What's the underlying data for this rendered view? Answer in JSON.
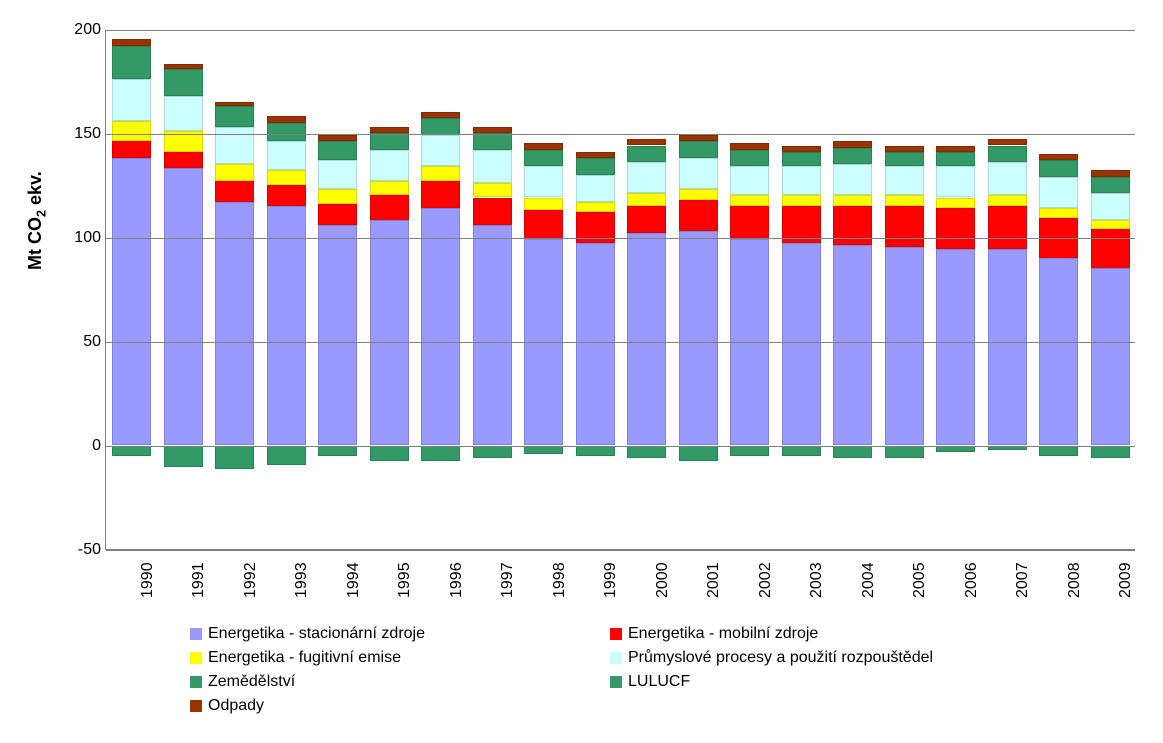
{
  "chart": {
    "type": "stacked-bar",
    "ylabel": "Mt CO₂ ekv.",
    "label_fontsize": 18,
    "tick_fontsize": 16,
    "legend_fontsize": 16,
    "ylim": [
      -50,
      200
    ],
    "ytick_step": 50,
    "yticks": [
      -50,
      0,
      50,
      100,
      150,
      200
    ],
    "background_color": "#ffffff",
    "grid_color": "#808080",
    "bar_width": 0.75,
    "categories": [
      "1990",
      "1991",
      "1992",
      "1993",
      "1994",
      "1995",
      "1996",
      "1997",
      "1998",
      "1999",
      "2000",
      "2001",
      "2002",
      "2003",
      "2004",
      "2005",
      "2006",
      "2007",
      "2008",
      "2009"
    ],
    "series": [
      {
        "key": "energetika_stacionarni",
        "label": "Energetika - stacionární zdroje",
        "color": "#9999ff",
        "values": [
          138,
          133,
          117,
          115,
          106,
          108,
          114,
          106,
          99,
          97,
          102,
          103,
          99,
          97,
          96,
          95,
          94,
          94,
          90,
          85
        ]
      },
      {
        "key": "energetika_mobilni",
        "label": "Energetika - mobilní zdroje",
        "color": "#ff0000",
        "values": [
          8,
          8,
          10,
          10,
          10,
          12,
          13,
          13,
          14,
          15,
          13,
          15,
          16,
          18,
          19,
          20,
          20,
          21,
          19,
          19
        ]
      },
      {
        "key": "energetika_fugitivni",
        "label": "Energetika - fugitivní emise",
        "color": "#ffff00",
        "values": [
          10,
          10,
          8,
          7,
          7,
          7,
          7,
          7,
          6,
          5,
          6,
          5,
          5,
          5,
          5,
          5,
          5,
          5,
          5,
          4
        ]
      },
      {
        "key": "prumyslove_procesy",
        "label": "Průmyslové procesy a použití rozpouštědel",
        "color": "#ccffff",
        "values": [
          20,
          17,
          18,
          14,
          14,
          15,
          15,
          16,
          15,
          13,
          15,
          15,
          14,
          14,
          15,
          14,
          15,
          16,
          15,
          13
        ]
      },
      {
        "key": "zemedelstvi",
        "label": "Zemědělství",
        "color": "#339966",
        "values": [
          16,
          13,
          10,
          9,
          9,
          8,
          8,
          8,
          8,
          8,
          8,
          8,
          8,
          7,
          8,
          7,
          7,
          8,
          8,
          8
        ]
      },
      {
        "key": "lulucf",
        "label": "LULUCF",
        "color": "#339966",
        "values": [
          -5,
          -10,
          -11,
          -9,
          -5,
          -7,
          -7,
          -6,
          -4,
          -5,
          -6,
          -7,
          -5,
          -5,
          -6,
          -6,
          -3,
          -2,
          -5,
          -6
        ]
      },
      {
        "key": "odpady",
        "label": "Odpady",
        "color": "#993300",
        "values": [
          3,
          2,
          2,
          3,
          3,
          3,
          3,
          3,
          3,
          3,
          3,
          3,
          3,
          3,
          3,
          3,
          3,
          3,
          3,
          3
        ]
      }
    ]
  }
}
